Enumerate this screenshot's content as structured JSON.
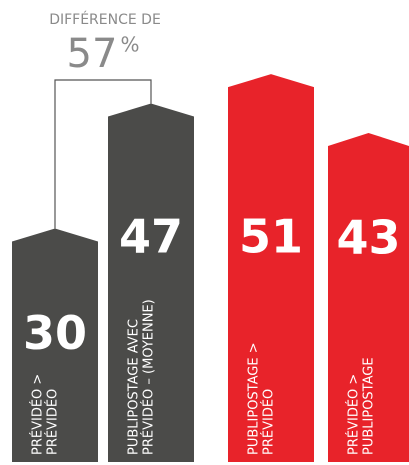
{
  "chart_data": {
    "type": "bar",
    "annotation": {
      "title": "DIFFÉRENCE DE",
      "value": 57,
      "suffix": "%"
    },
    "categories": [
      [
        "PRÉVIDÉO >",
        "PRÉVIDÉO"
      ],
      [
        "PUBLIPOSTAGE AVEC",
        "PRÉVIDÉO – (MOYENNE)"
      ],
      [
        "PUBLIPOSTAGE >",
        "PRÉVIDÉO"
      ],
      [
        "PRÉVIDÉO >",
        "PUBLIPOSTAGE"
      ]
    ],
    "values": [
      30,
      47,
      51,
      43
    ],
    "colors": [
      "#4b4b49",
      "#4b4b49",
      "#e8232a",
      "#e8232a"
    ]
  }
}
